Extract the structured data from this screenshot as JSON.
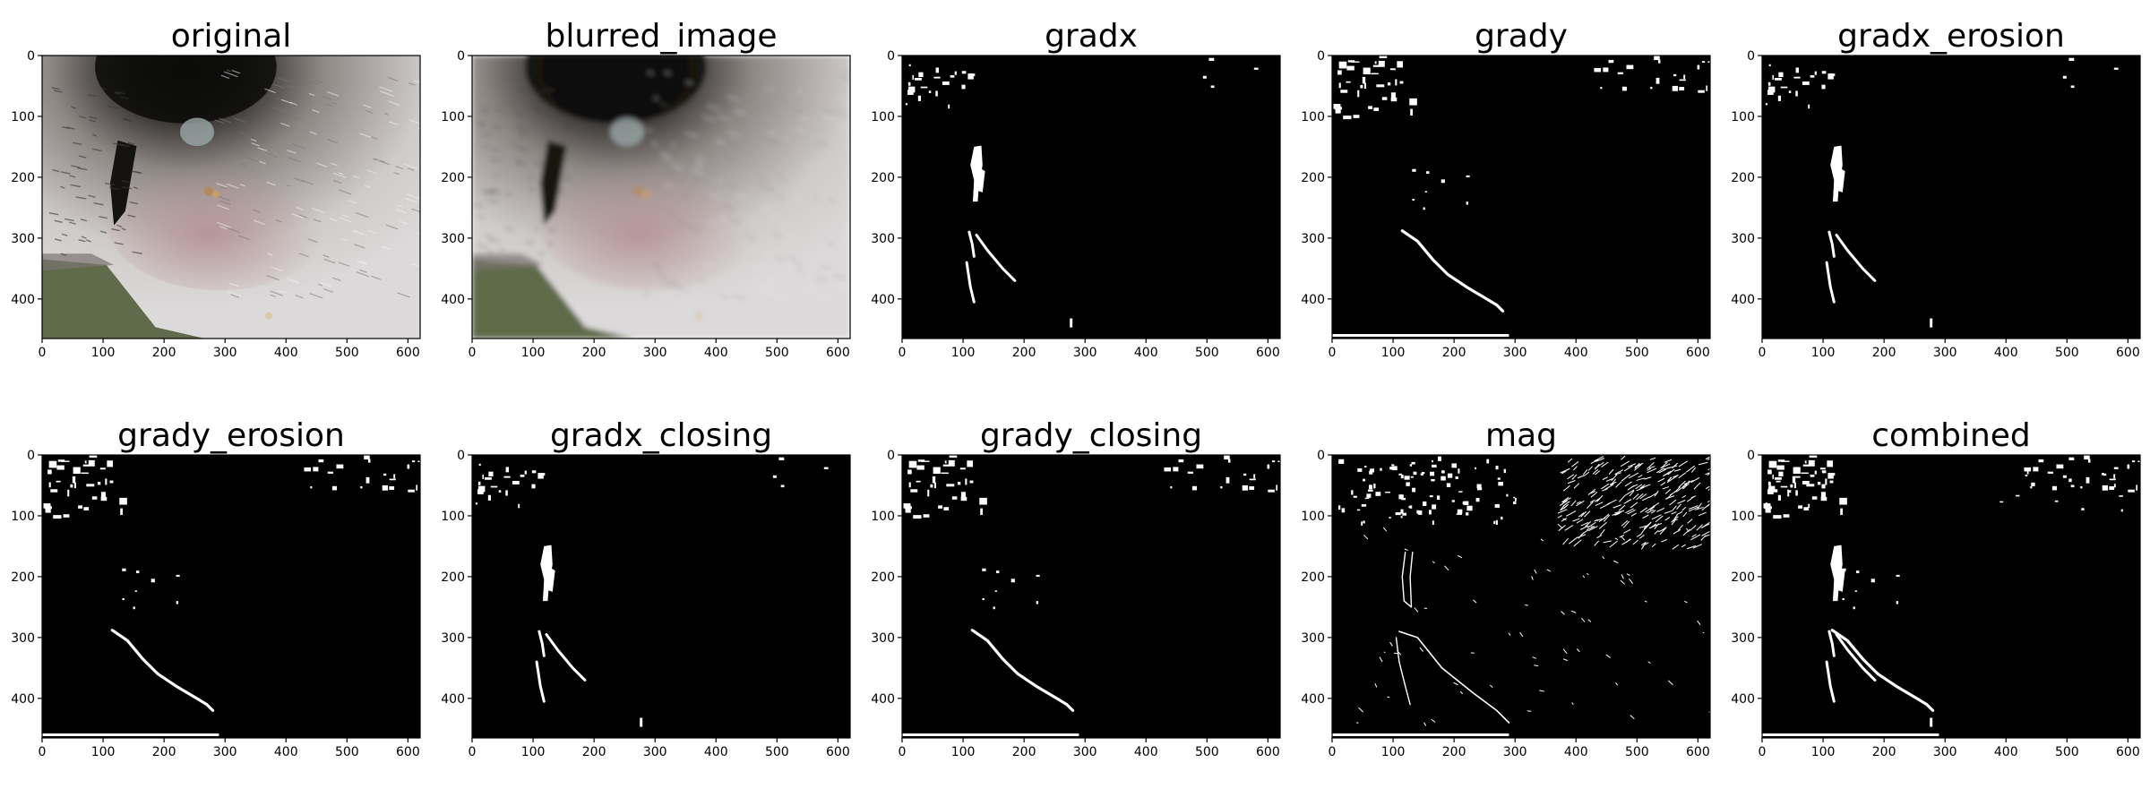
{
  "figure": {
    "panels": [
      {
        "title": "original",
        "kind": "photo"
      },
      {
        "title": "blurred_image",
        "kind": "photo-blur"
      },
      {
        "title": "gradx",
        "kind": "gradx"
      },
      {
        "title": "grady",
        "kind": "grady"
      },
      {
        "title": "gradx_erosion",
        "kind": "gradx_erosion"
      },
      {
        "title": "grady_erosion",
        "kind": "grady_erosion"
      },
      {
        "title": "gradx_closing",
        "kind": "gradx_closing"
      },
      {
        "title": "grady_closing",
        "kind": "grady_closing"
      },
      {
        "title": "mag",
        "kind": "mag"
      },
      {
        "title": "combined",
        "kind": "combined"
      }
    ],
    "x_ticks": [
      "0",
      "100",
      "200",
      "300",
      "400",
      "500",
      "600"
    ],
    "y_ticks": [
      "0",
      "100",
      "200",
      "300",
      "400"
    ],
    "rows": {
      "top": {
        "x_max": 620,
        "y_max": 465
      },
      "bottom": {
        "x_max": 620,
        "y_max": 465
      }
    }
  }
}
